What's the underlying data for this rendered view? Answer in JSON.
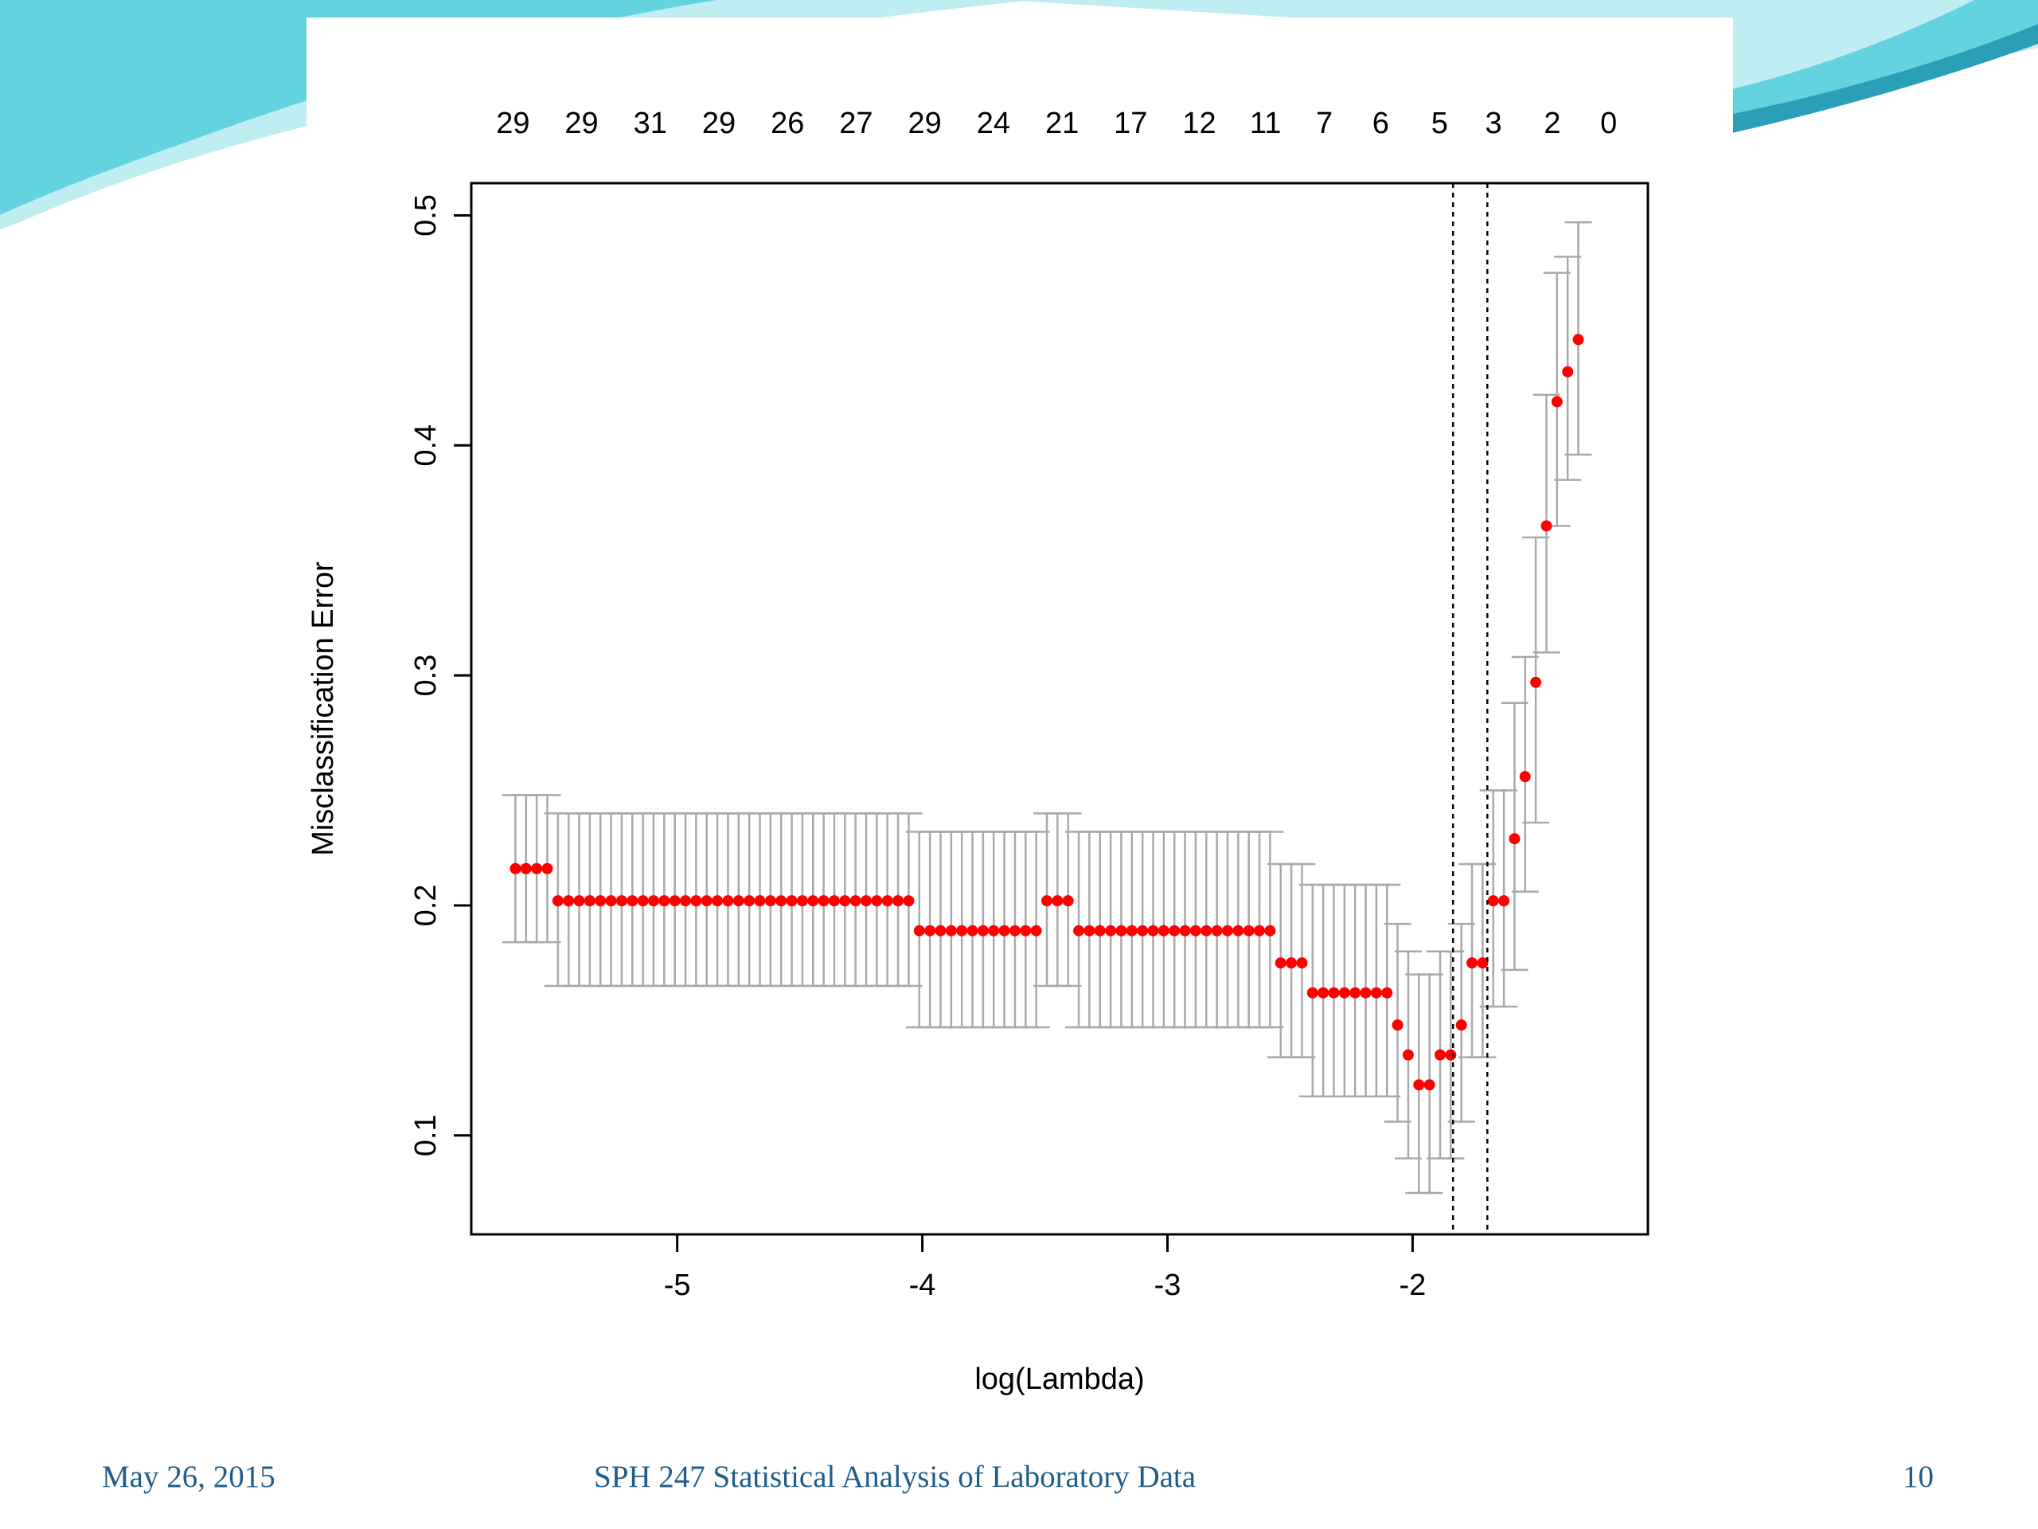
{
  "footer": {
    "date": "May 26, 2015",
    "title": "SPH 247 Statistical Analysis of Laboratory Data",
    "page": "10"
  },
  "theme": {
    "accent_light": "#bfeef2",
    "accent_mid": "#63d3df",
    "accent_dark": "#2a9fb8",
    "footer_text": "#1f5c8a",
    "point_color": "#ff0000",
    "errorbar_color": "#a9a9a9"
  },
  "chart_data": {
    "type": "scatter",
    "title": "",
    "xlabel": "log(Lambda)",
    "ylabel": "Misclassification Error",
    "xlim": [
      -5.84,
      -1.04
    ],
    "ylim": [
      0.057,
      0.514
    ],
    "x_ticks": [
      -5,
      -4,
      -3,
      -2
    ],
    "x_tick_labels": [
      "-5",
      "-4",
      "-3",
      "-2"
    ],
    "y_ticks": [
      0.1,
      0.2,
      0.3,
      0.4,
      0.5
    ],
    "y_tick_labels": [
      "0.1",
      "0.2",
      "0.3",
      "0.4",
      "0.5"
    ],
    "top_axis": {
      "ticks": [
        -5.67,
        -5.39,
        -5.11,
        -4.83,
        -4.55,
        -4.27,
        -3.99,
        -3.71,
        -3.43,
        -3.15,
        -2.87,
        -2.6,
        -2.36,
        -2.13,
        -1.89,
        -1.67,
        -1.43,
        -1.2
      ],
      "labels": [
        "29",
        "29",
        "31",
        "29",
        "26",
        "27",
        "29",
        "24",
        "21",
        "17",
        "12",
        "11",
        "7",
        "6",
        "5",
        "3",
        "2",
        "0"
      ]
    },
    "vlines": [
      -1.835,
      -1.695
    ],
    "series": [
      {
        "x_start": -5.66,
        "x_step": 0.04336,
        "y": [
          0.216,
          0.216,
          0.216,
          0.216,
          0.202,
          0.202,
          0.202,
          0.202,
          0.202,
          0.202,
          0.202,
          0.202,
          0.202,
          0.202,
          0.202,
          0.202,
          0.202,
          0.202,
          0.202,
          0.202,
          0.202,
          0.202,
          0.202,
          0.202,
          0.202,
          0.202,
          0.202,
          0.202,
          0.202,
          0.202,
          0.202,
          0.202,
          0.202,
          0.202,
          0.202,
          0.202,
          0.202,
          0.202,
          0.189,
          0.189,
          0.189,
          0.189,
          0.189,
          0.189,
          0.189,
          0.189,
          0.189,
          0.189,
          0.189,
          0.189,
          0.202,
          0.202,
          0.202,
          0.189,
          0.189,
          0.189,
          0.189,
          0.189,
          0.189,
          0.189,
          0.189,
          0.189,
          0.189,
          0.189,
          0.189,
          0.189,
          0.189,
          0.189,
          0.189,
          0.189,
          0.189,
          0.189,
          0.175,
          0.175,
          0.175,
          0.162,
          0.162,
          0.162,
          0.162,
          0.162,
          0.162,
          0.162,
          0.162,
          0.148,
          0.135,
          0.122,
          0.122,
          0.135,
          0.135,
          0.148,
          0.175,
          0.175,
          0.202,
          0.202,
          0.229,
          0.256,
          0.297,
          0.365,
          0.419,
          0.432,
          0.446
        ],
        "y_low": [
          0.184,
          0.184,
          0.184,
          0.184,
          0.165,
          0.165,
          0.165,
          0.165,
          0.165,
          0.165,
          0.165,
          0.165,
          0.165,
          0.165,
          0.165,
          0.165,
          0.165,
          0.165,
          0.165,
          0.165,
          0.165,
          0.165,
          0.165,
          0.165,
          0.165,
          0.165,
          0.165,
          0.165,
          0.165,
          0.165,
          0.165,
          0.165,
          0.165,
          0.165,
          0.165,
          0.165,
          0.165,
          0.165,
          0.147,
          0.147,
          0.147,
          0.147,
          0.147,
          0.147,
          0.147,
          0.147,
          0.147,
          0.147,
          0.147,
          0.147,
          0.165,
          0.165,
          0.165,
          0.147,
          0.147,
          0.147,
          0.147,
          0.147,
          0.147,
          0.147,
          0.147,
          0.147,
          0.147,
          0.147,
          0.147,
          0.147,
          0.147,
          0.147,
          0.147,
          0.147,
          0.147,
          0.147,
          0.134,
          0.134,
          0.134,
          0.117,
          0.117,
          0.117,
          0.117,
          0.117,
          0.117,
          0.117,
          0.117,
          0.106,
          0.09,
          0.075,
          0.075,
          0.09,
          0.09,
          0.106,
          0.134,
          0.134,
          0.156,
          0.156,
          0.172,
          0.206,
          0.236,
          0.31,
          0.365,
          0.385,
          0.396
        ],
        "y_high": [
          0.248,
          0.248,
          0.248,
          0.248,
          0.24,
          0.24,
          0.24,
          0.24,
          0.24,
          0.24,
          0.24,
          0.24,
          0.24,
          0.24,
          0.24,
          0.24,
          0.24,
          0.24,
          0.24,
          0.24,
          0.24,
          0.24,
          0.24,
          0.24,
          0.24,
          0.24,
          0.24,
          0.24,
          0.24,
          0.24,
          0.24,
          0.24,
          0.24,
          0.24,
          0.24,
          0.24,
          0.24,
          0.24,
          0.232,
          0.232,
          0.232,
          0.232,
          0.232,
          0.232,
          0.232,
          0.232,
          0.232,
          0.232,
          0.232,
          0.232,
          0.24,
          0.24,
          0.24,
          0.232,
          0.232,
          0.232,
          0.232,
          0.232,
          0.232,
          0.232,
          0.232,
          0.232,
          0.232,
          0.232,
          0.232,
          0.232,
          0.232,
          0.232,
          0.232,
          0.232,
          0.232,
          0.232,
          0.218,
          0.218,
          0.218,
          0.209,
          0.209,
          0.209,
          0.209,
          0.209,
          0.209,
          0.209,
          0.209,
          0.192,
          0.18,
          0.17,
          0.17,
          0.18,
          0.18,
          0.192,
          0.218,
          0.218,
          0.25,
          0.25,
          0.288,
          0.308,
          0.36,
          0.422,
          0.475,
          0.482,
          0.497
        ]
      }
    ]
  }
}
